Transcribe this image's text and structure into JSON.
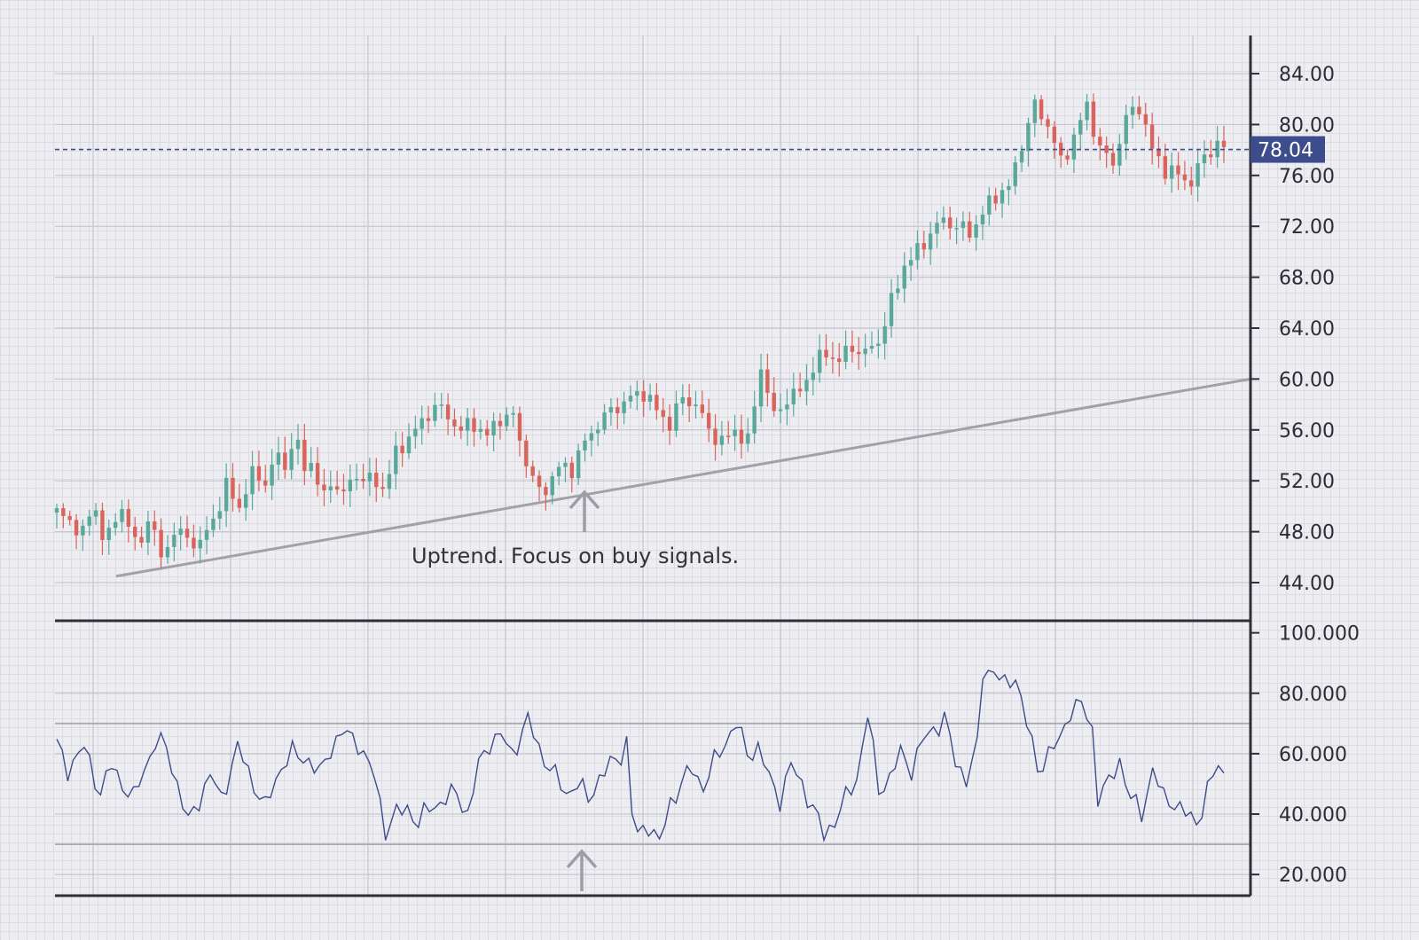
{
  "chart_data": [
    {
      "type": "candlestick",
      "panel": "price",
      "ylim": [
        41,
        87
      ],
      "yticks": [
        84,
        80,
        76,
        72,
        68,
        64,
        60,
        56,
        52,
        48,
        44
      ],
      "ytick_labels": [
        "84.00",
        "80.00",
        "76.00",
        "72.00",
        "68.00",
        "64.00",
        "60.00",
        "56.00",
        "52.00",
        "48.00",
        "44.00"
      ],
      "last_price": 78.04,
      "last_price_label": "78.04",
      "trendline": [
        [
          5,
          44.5
        ],
        [
          100,
          60
        ]
      ],
      "close_path": [
        [
          0,
          49.5
        ],
        [
          4,
          48
        ],
        [
          6,
          50
        ],
        [
          7,
          47.5
        ],
        [
          9,
          48.5
        ],
        [
          10,
          50.5
        ],
        [
          11,
          48
        ],
        [
          13,
          47
        ],
        [
          14,
          49.5
        ],
        [
          15,
          47.5
        ],
        [
          16,
          46
        ],
        [
          18,
          48
        ],
        [
          20,
          47.5
        ],
        [
          22,
          47
        ],
        [
          24,
          49
        ],
        [
          26,
          51.5
        ],
        [
          28,
          50
        ],
        [
          30,
          52.5
        ],
        [
          32,
          52
        ],
        [
          34,
          54
        ],
        [
          35,
          53
        ],
        [
          36,
          55
        ],
        [
          37,
          54.5
        ],
        [
          38,
          53
        ],
        [
          39,
          53.5
        ],
        [
          40,
          52
        ],
        [
          41,
          50.5
        ],
        [
          42,
          52
        ],
        [
          44,
          51
        ],
        [
          46,
          52.5
        ],
        [
          48,
          52
        ],
        [
          50,
          51.5
        ],
        [
          52,
          54
        ],
        [
          54,
          55.5
        ],
        [
          56,
          56.5
        ],
        [
          58,
          58
        ],
        [
          60,
          57
        ],
        [
          62,
          56
        ],
        [
          64,
          56.5
        ],
        [
          66,
          55.5
        ],
        [
          68,
          57
        ],
        [
          70,
          57
        ],
        [
          72,
          53.5
        ],
        [
          74,
          51
        ],
        [
          75,
          51.5
        ],
        [
          77,
          53
        ],
        [
          79,
          53
        ],
        [
          81,
          55
        ],
        [
          83,
          56.5
        ],
        [
          85,
          57.5
        ],
        [
          88,
          58.5
        ],
        [
          90,
          59
        ],
        [
          92,
          57.5
        ],
        [
          94,
          56.5
        ],
        [
          96,
          58.5
        ],
        [
          98,
          58
        ],
        [
          100,
          56
        ],
        [
          102,
          55
        ],
        [
          104,
          56
        ],
        [
          106,
          55
        ],
        [
          108,
          61
        ],
        [
          110,
          57
        ],
        [
          112,
          58.5
        ],
        [
          114,
          59
        ],
        [
          116,
          61
        ],
        [
          118,
          62
        ],
        [
          120,
          61.5
        ],
        [
          122,
          62.5
        ],
        [
          124,
          62
        ],
        [
          126,
          63
        ],
        [
          127,
          64.5
        ],
        [
          130,
          69
        ],
        [
          132,
          70
        ],
        [
          134,
          71.5
        ],
        [
          136,
          72.5
        ],
        [
          138,
          72
        ],
        [
          140,
          71.5
        ],
        [
          142,
          73
        ],
        [
          144,
          74.5
        ],
        [
          146,
          75
        ],
        [
          148,
          78.5
        ],
        [
          150,
          81.5
        ],
        [
          152,
          80
        ],
        [
          154,
          77
        ],
        [
          156,
          79
        ],
        [
          158,
          81.5
        ],
        [
          160,
          78
        ],
        [
          162,
          77
        ],
        [
          164,
          80.5
        ],
        [
          166,
          81.5
        ],
        [
          168,
          78
        ],
        [
          170,
          76.5
        ],
        [
          172,
          76
        ],
        [
          174,
          75.5
        ],
        [
          176,
          77.5
        ],
        [
          178,
          78.5
        ],
        [
          179,
          78.04
        ]
      ],
      "n_bars": 180,
      "up_color": "#5aa89a",
      "down_color": "#d9645b",
      "annotation": "Uptrend. Focus on buy signals."
    },
    {
      "type": "line",
      "panel": "oscillator",
      "ylim": [
        13,
        104
      ],
      "yticks": [
        100,
        80,
        60,
        40,
        20
      ],
      "ytick_labels": [
        "100.000",
        "80.000",
        "60.000",
        "40.000",
        "20.000"
      ],
      "bands": [
        70,
        30
      ],
      "color": "#3d4c8a",
      "y_path": [
        [
          0,
          63
        ],
        [
          2,
          55
        ],
        [
          5,
          62
        ],
        [
          8,
          47
        ],
        [
          10,
          56
        ],
        [
          12,
          50
        ],
        [
          14,
          45
        ],
        [
          16,
          55
        ],
        [
          18,
          64
        ],
        [
          20,
          62
        ],
        [
          22,
          50
        ],
        [
          24,
          37
        ],
        [
          26,
          45
        ],
        [
          28,
          53
        ],
        [
          30,
          45
        ],
        [
          33,
          62
        ],
        [
          36,
          50
        ],
        [
          38,
          42
        ],
        [
          41,
          56
        ],
        [
          43,
          60
        ],
        [
          46,
          58
        ],
        [
          48,
          53
        ],
        [
          50,
          62
        ],
        [
          52,
          67
        ],
        [
          55,
          64
        ],
        [
          58,
          52
        ],
        [
          60,
          35
        ],
        [
          62,
          40
        ],
        [
          64,
          42
        ],
        [
          66,
          37
        ],
        [
          68,
          42
        ],
        [
          70,
          44
        ],
        [
          73,
          47
        ],
        [
          75,
          40
        ],
        [
          77,
          56
        ],
        [
          79,
          64
        ],
        [
          81,
          66
        ],
        [
          83,
          60
        ],
        [
          86,
          71
        ],
        [
          88,
          62
        ],
        [
          90,
          55
        ],
        [
          93,
          47
        ],
        [
          95,
          50
        ],
        [
          97,
          45
        ],
        [
          99,
          52
        ],
        [
          101,
          56
        ],
        [
          103,
          60
        ],
        [
          104,
          64
        ],
        [
          105,
          40
        ],
        [
          106,
          33
        ],
        [
          108,
          37
        ],
        [
          110,
          30
        ],
        [
          112,
          44
        ],
        [
          114,
          50
        ],
        [
          116,
          55
        ],
        [
          118,
          49
        ],
        [
          120,
          57
        ],
        [
          122,
          64
        ],
        [
          124,
          70
        ],
        [
          126,
          60
        ],
        [
          128,
          62
        ],
        [
          130,
          52
        ],
        [
          132,
          45
        ],
        [
          134,
          56
        ],
        [
          136,
          50
        ],
        [
          138,
          42
        ],
        [
          140,
          33
        ],
        [
          142,
          38
        ],
        [
          144,
          45
        ],
        [
          146,
          52
        ],
        [
          148,
          73
        ],
        [
          150,
          48
        ],
        [
          152,
          52
        ],
        [
          154,
          60
        ],
        [
          156,
          55
        ],
        [
          158,
          64
        ],
        [
          160,
          68
        ],
        [
          162,
          72
        ],
        [
          164,
          57
        ],
        [
          166,
          52
        ],
        [
          168,
          62
        ],
        [
          169,
          87
        ],
        [
          171,
          88
        ],
        [
          173,
          82
        ],
        [
          175,
          86
        ],
        [
          177,
          70
        ],
        [
          179,
          55
        ],
        [
          181,
          60
        ],
        [
          183,
          64
        ],
        [
          185,
          75
        ],
        [
          187,
          76
        ],
        [
          189,
          68
        ],
        [
          190,
          46
        ],
        [
          192,
          50
        ],
        [
          194,
          58
        ],
        [
          196,
          45
        ],
        [
          198,
          40
        ],
        [
          200,
          55
        ],
        [
          202,
          45
        ],
        [
          204,
          44
        ],
        [
          206,
          40
        ],
        [
          208,
          37
        ],
        [
          210,
          48
        ],
        [
          212,
          56
        ],
        [
          213,
          53
        ]
      ],
      "n_points": 214
    }
  ]
}
